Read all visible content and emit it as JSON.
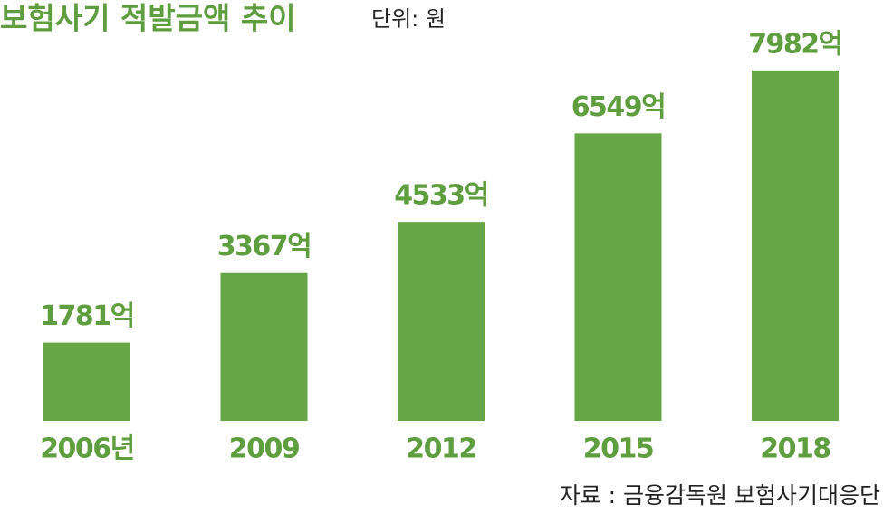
{
  "chart_data": {
    "type": "bar",
    "title": "보험사기 적발금액 추이",
    "subtitle": "단위: 원",
    "categories": [
      "2006년",
      "2009",
      "2012",
      "2015",
      "2018"
    ],
    "values": [
      1781,
      3367,
      4533,
      6549,
      7982
    ],
    "value_labels": [
      "1781억",
      "3367억",
      "4533억",
      "6549억",
      "7982억"
    ],
    "color": "#66a646",
    "source": "자료 : 금융감독원 보험사기대응단"
  }
}
